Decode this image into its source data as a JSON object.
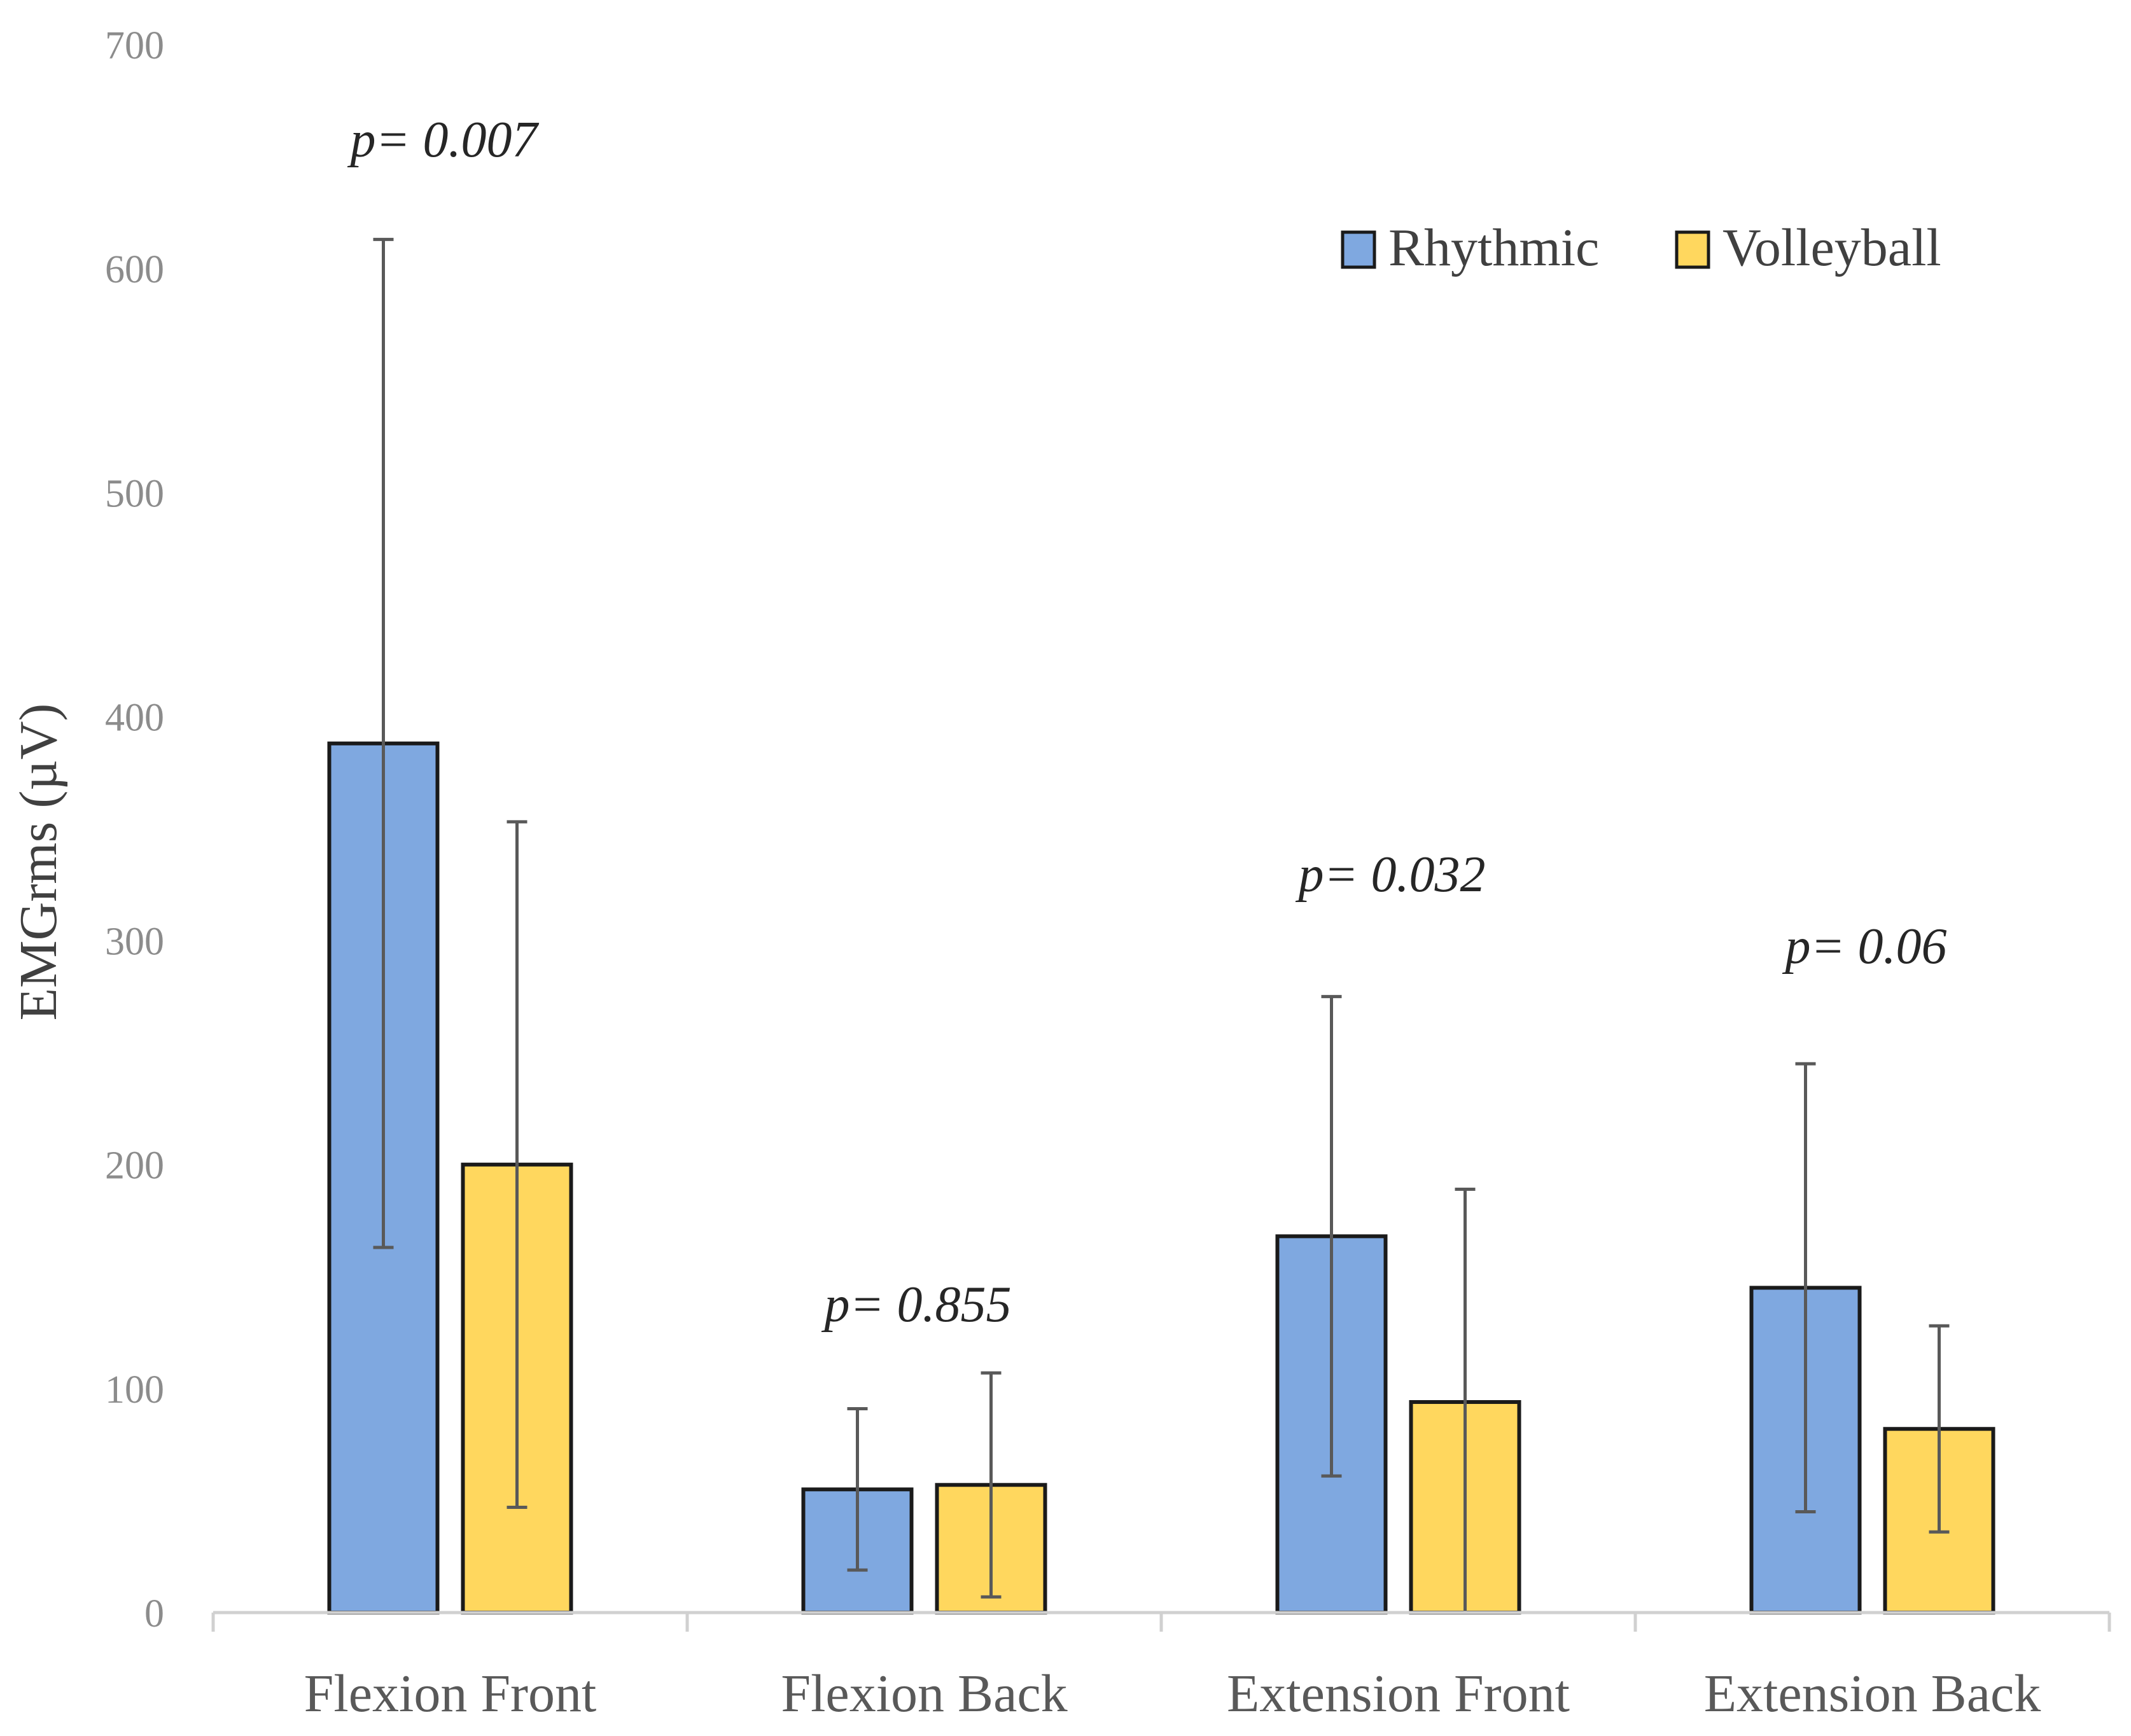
{
  "chart_data": {
    "type": "bar",
    "title": "",
    "xlabel": "",
    "ylabel": "EMGrms (µV)",
    "ylim": [
      0,
      700
    ],
    "yticks": [
      0,
      100,
      200,
      300,
      400,
      500,
      600,
      700
    ],
    "ytick_labels": [
      "0",
      "100",
      "200",
      "300",
      "400",
      "500",
      "600",
      "700"
    ],
    "grid": false,
    "legend_position": "top-right",
    "categories": [
      "Flexion Front",
      "Flexion Back",
      "Extension Front",
      "Extension Back"
    ],
    "series": [
      {
        "name": "Rhythmic",
        "color": "#7fa8e0",
        "values": [
          388,
          55,
          168,
          145
        ],
        "error": [
          225,
          36,
          107,
          100
        ]
      },
      {
        "name": "Volleyball",
        "color": "#ffd75e",
        "values": [
          200,
          57,
          94,
          82
        ],
        "error": [
          153,
          50,
          95,
          46
        ]
      }
    ],
    "annotations": [
      {
        "category": "Flexion Front",
        "text": "p= 0.007",
        "value": 650
      },
      {
        "category": "Flexion Back",
        "text": "p= 0.855",
        "value": 130
      },
      {
        "category": "Extension Front",
        "text": "p= 0.032",
        "value": 322
      },
      {
        "category": "Extension Back",
        "text": "p= 0.06",
        "value": 290
      }
    ]
  }
}
